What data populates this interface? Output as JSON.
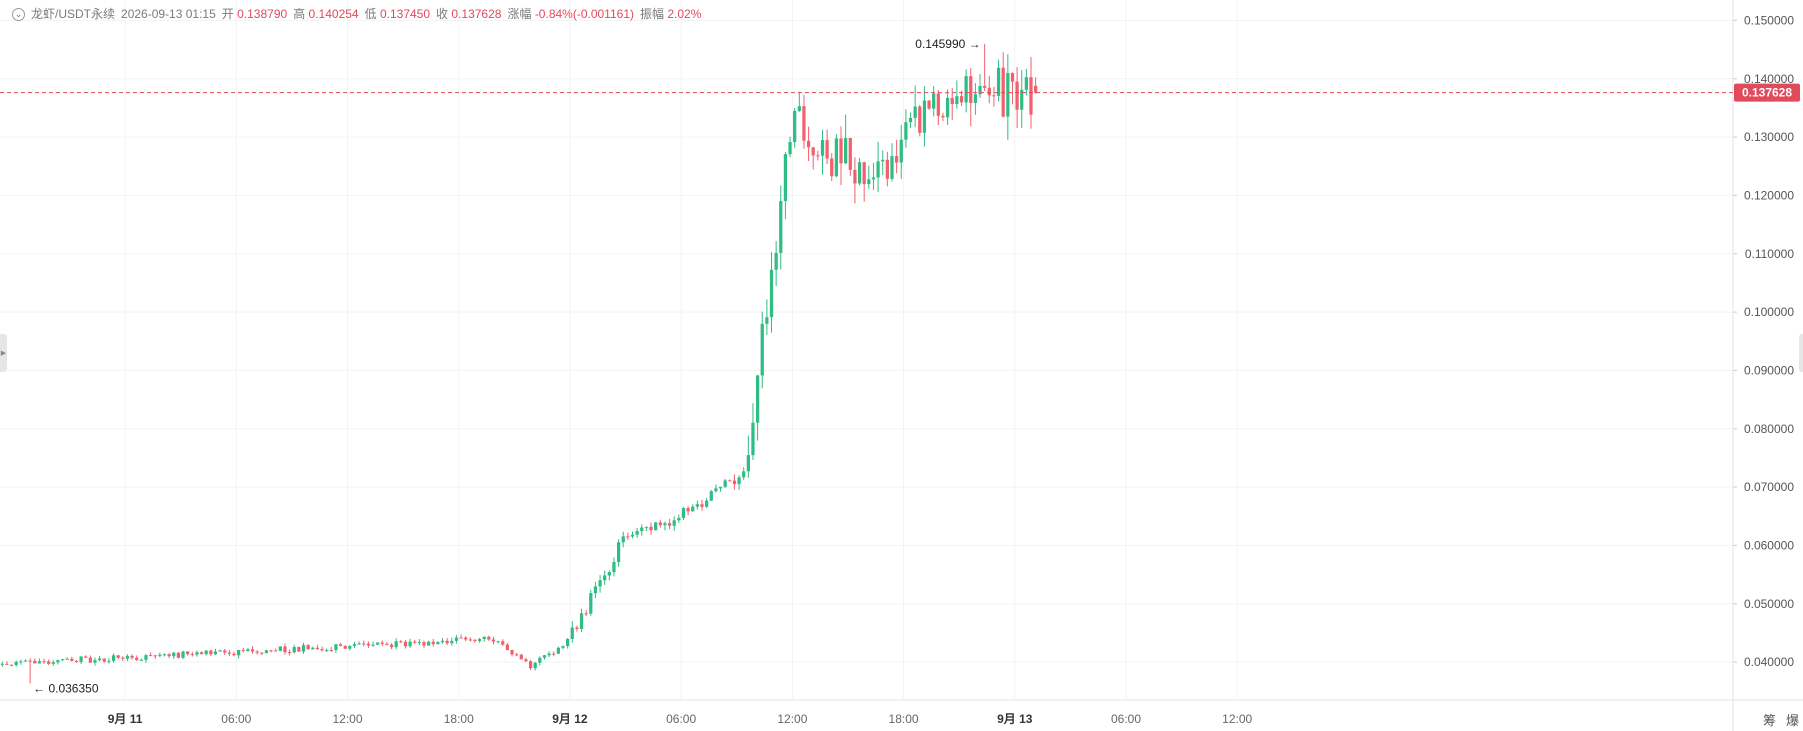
{
  "header": {
    "symbol": "龙虾/USDT永续",
    "datetime": "2026-09-13 01:15",
    "open_label": "开",
    "open": "0.138790",
    "high_label": "高",
    "high": "0.140254",
    "low_label": "低",
    "low": "0.137450",
    "close_label": "收",
    "close": "0.137628",
    "change_label": "涨幅",
    "change": "-0.84%(-0.001161)",
    "amplitude_label": "振幅",
    "amplitude": "2.02%"
  },
  "chart_data": {
    "type": "candlestick",
    "timeframe": "15m",
    "up_color": "#2ebd85",
    "down_color": "#f0616d",
    "last_price": 0.137628,
    "last_price_label": "0.137628",
    "last_price_color": "#e04a5a",
    "y_range": [
      0.0335,
      0.1535
    ],
    "y_ticks": [
      {
        "value": 0.04,
        "label": "0.040000"
      },
      {
        "value": 0.05,
        "label": "0.050000"
      },
      {
        "value": 0.06,
        "label": "0.060000"
      },
      {
        "value": 0.07,
        "label": "0.070000"
      },
      {
        "value": 0.08,
        "label": "0.080000"
      },
      {
        "value": 0.09,
        "label": "0.090000"
      },
      {
        "value": 0.1,
        "label": "0.100000"
      },
      {
        "value": 0.11,
        "label": "0.110000"
      },
      {
        "value": 0.12,
        "label": "0.120000"
      },
      {
        "value": 0.13,
        "label": "0.130000"
      },
      {
        "value": 0.14,
        "label": "0.140000"
      },
      {
        "value": 0.15,
        "label": "0.150000"
      }
    ],
    "x_range": [
      "2026-09-10T17:15",
      "2026-09-14T14:45"
    ],
    "x_ticks": [
      {
        "time": "2026-09-11T00:00",
        "label": "9月 11",
        "bold": true
      },
      {
        "time": "2026-09-11T06:00",
        "label": "06:00"
      },
      {
        "time": "2026-09-11T12:00",
        "label": "12:00"
      },
      {
        "time": "2026-09-11T18:00",
        "label": "18:00"
      },
      {
        "time": "2026-09-12T00:00",
        "label": "9月 12",
        "bold": true
      },
      {
        "time": "2026-09-12T06:00",
        "label": "06:00"
      },
      {
        "time": "2026-09-12T12:00",
        "label": "12:00"
      },
      {
        "time": "2026-09-12T18:00",
        "label": "18:00"
      },
      {
        "time": "2026-09-13T00:00",
        "label": "9月 13",
        "bold": true
      },
      {
        "time": "2026-09-13T06:00",
        "label": "06:00"
      },
      {
        "time": "2026-09-13T12:00",
        "label": "12:00"
      }
    ],
    "annotations": [
      {
        "label": "0.145990",
        "value": 0.14599,
        "time": "2026-09-12T22:15",
        "side": "left"
      },
      {
        "label": "0.036350",
        "value": 0.03635,
        "time": "2026-09-10T18:45",
        "side": "right"
      }
    ],
    "segments": [
      {
        "start": "2026-09-10T17:15",
        "end": "2026-09-11T20:00",
        "from": 0.0397,
        "to": 0.044,
        "noise": 0.0006
      },
      {
        "start": "2026-09-11T20:00",
        "end": "2026-09-11T22:00",
        "from": 0.044,
        "to": 0.0393,
        "noise": 0.0004
      },
      {
        "start": "2026-09-11T22:00",
        "end": "2026-09-12T00:00",
        "from": 0.0393,
        "to": 0.0435,
        "noise": 0.0005
      },
      {
        "start": "2026-09-12T00:00",
        "end": "2026-09-12T03:00",
        "from": 0.0435,
        "to": 0.061,
        "noise": 0.0012
      },
      {
        "start": "2026-09-12T03:00",
        "end": "2026-09-12T06:00",
        "from": 0.061,
        "to": 0.065,
        "noise": 0.001
      },
      {
        "start": "2026-09-12T06:00",
        "end": "2026-09-12T09:30",
        "from": 0.065,
        "to": 0.0725,
        "noise": 0.0012
      },
      {
        "start": "2026-09-12T09:30",
        "end": "2026-09-12T10:45",
        "from": 0.0725,
        "to": 0.1,
        "noise": 0.004
      },
      {
        "start": "2026-09-12T10:45",
        "end": "2026-09-12T12:00",
        "from": 0.1,
        "to": 0.132,
        "noise": 0.004
      },
      {
        "start": "2026-09-12T12:00",
        "end": "2026-09-12T16:30",
        "from": 0.132,
        "to": 0.123,
        "noise": 0.0045
      },
      {
        "start": "2026-09-12T16:30",
        "end": "2026-09-12T20:30",
        "from": 0.123,
        "to": 0.138,
        "noise": 0.004
      },
      {
        "start": "2026-09-12T20:30",
        "end": "2026-09-13T01:15",
        "from": 0.138,
        "to": 0.1376,
        "noise": 0.0045
      }
    ]
  },
  "controls": {
    "left_handle_icon": "chevron-right-icon",
    "corner": [
      "筹",
      "爆"
    ]
  }
}
